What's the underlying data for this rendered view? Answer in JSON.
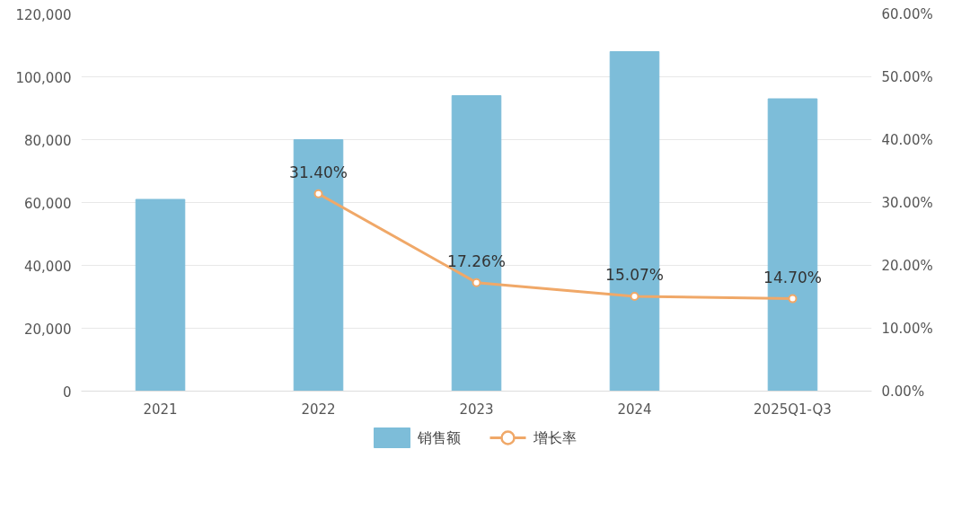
{
  "chart_data": {
    "type": "bar",
    "categories": [
      "2021",
      "2022",
      "2023",
      "2024",
      "2025Q1-Q3"
    ],
    "series": [
      {
        "name": "销售额",
        "color": "#7dbdd9",
        "values": [
          61000,
          80000,
          94000,
          108000,
          93000
        ]
      },
      {
        "name": "增长率",
        "type": "line",
        "axis": "y2",
        "color": "#f0a868",
        "marker": "circle",
        "values": [
          null,
          31.4,
          17.26,
          15.07,
          14.7
        ],
        "value_labels": [
          null,
          "31.40%",
          "17.26%",
          "15.07%",
          "14.70%"
        ]
      }
    ],
    "ylim": [
      0,
      120000
    ],
    "yticks": [
      {
        "value": 0,
        "label": "0"
      },
      {
        "value": 20000,
        "label": "20,000"
      },
      {
        "value": 40000,
        "label": "40,000"
      },
      {
        "value": 60000,
        "label": "60,000"
      },
      {
        "value": 80000,
        "label": "80,000"
      },
      {
        "value": 100000,
        "label": "100,000"
      },
      {
        "value": 120000,
        "label": "120,000"
      }
    ],
    "y2lim": [
      0,
      60
    ],
    "y2ticks": [
      {
        "value": 0,
        "label": "0.00%"
      },
      {
        "value": 10,
        "label": "10.00%"
      },
      {
        "value": 20,
        "label": "20.00%"
      },
      {
        "value": 30,
        "label": "30.00%"
      },
      {
        "value": 40,
        "label": "40.00%"
      },
      {
        "value": 50,
        "label": "50.00%"
      },
      {
        "value": 60,
        "label": "60.00%"
      }
    ],
    "grid": "y",
    "legend": "bottom"
  }
}
